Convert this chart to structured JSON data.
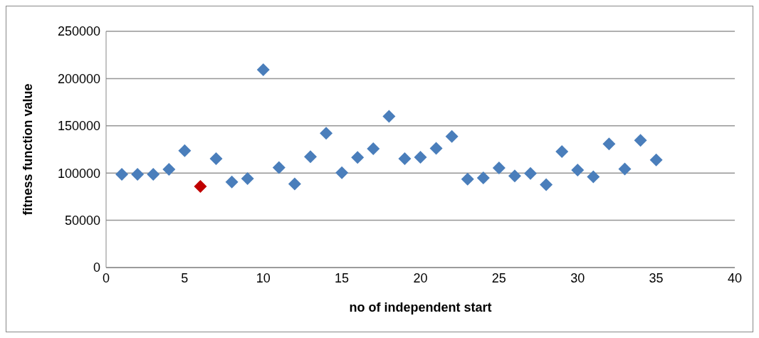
{
  "chart_data": {
    "type": "scatter",
    "xlabel": "no of independent start",
    "ylabel": "fitness function value",
    "x": [
      1,
      2,
      3,
      4,
      5,
      6,
      7,
      8,
      9,
      10,
      11,
      12,
      13,
      14,
      15,
      16,
      17,
      18,
      19,
      20,
      21,
      22,
      23,
      24,
      25,
      26,
      27,
      28,
      29,
      30,
      31,
      32,
      33,
      34,
      35
    ],
    "values": [
      98700,
      98700,
      98700,
      104000,
      123600,
      85900,
      115200,
      90600,
      94200,
      209400,
      105800,
      88500,
      117300,
      142100,
      100300,
      116500,
      125700,
      160000,
      115200,
      116800,
      126200,
      138700,
      93500,
      94800,
      105500,
      96900,
      99500,
      87700,
      122800,
      103100,
      96100,
      130900,
      104200,
      134600,
      113900
    ],
    "colors": [
      "#4a7ebb",
      "#4a7ebb",
      "#4a7ebb",
      "#4a7ebb",
      "#4a7ebb",
      "#c00000",
      "#4a7ebb",
      "#4a7ebb",
      "#4a7ebb",
      "#4a7ebb",
      "#4a7ebb",
      "#4a7ebb",
      "#4a7ebb",
      "#4a7ebb",
      "#4a7ebb",
      "#4a7ebb",
      "#4a7ebb",
      "#4a7ebb",
      "#4a7ebb",
      "#4a7ebb",
      "#4a7ebb",
      "#4a7ebb",
      "#4a7ebb",
      "#4a7ebb",
      "#4a7ebb",
      "#4a7ebb",
      "#4a7ebb",
      "#4a7ebb",
      "#4a7ebb",
      "#4a7ebb",
      "#4a7ebb",
      "#4a7ebb",
      "#4a7ebb",
      "#4a7ebb",
      "#4a7ebb"
    ],
    "xlim": [
      0,
      40
    ],
    "xticks": [
      0,
      5,
      10,
      15,
      20,
      25,
      30,
      35,
      40
    ],
    "ylim": [
      0,
      250000
    ],
    "yticks": [
      0,
      50000,
      100000,
      150000,
      200000,
      250000
    ],
    "grid": "y",
    "marker": "diamond"
  }
}
